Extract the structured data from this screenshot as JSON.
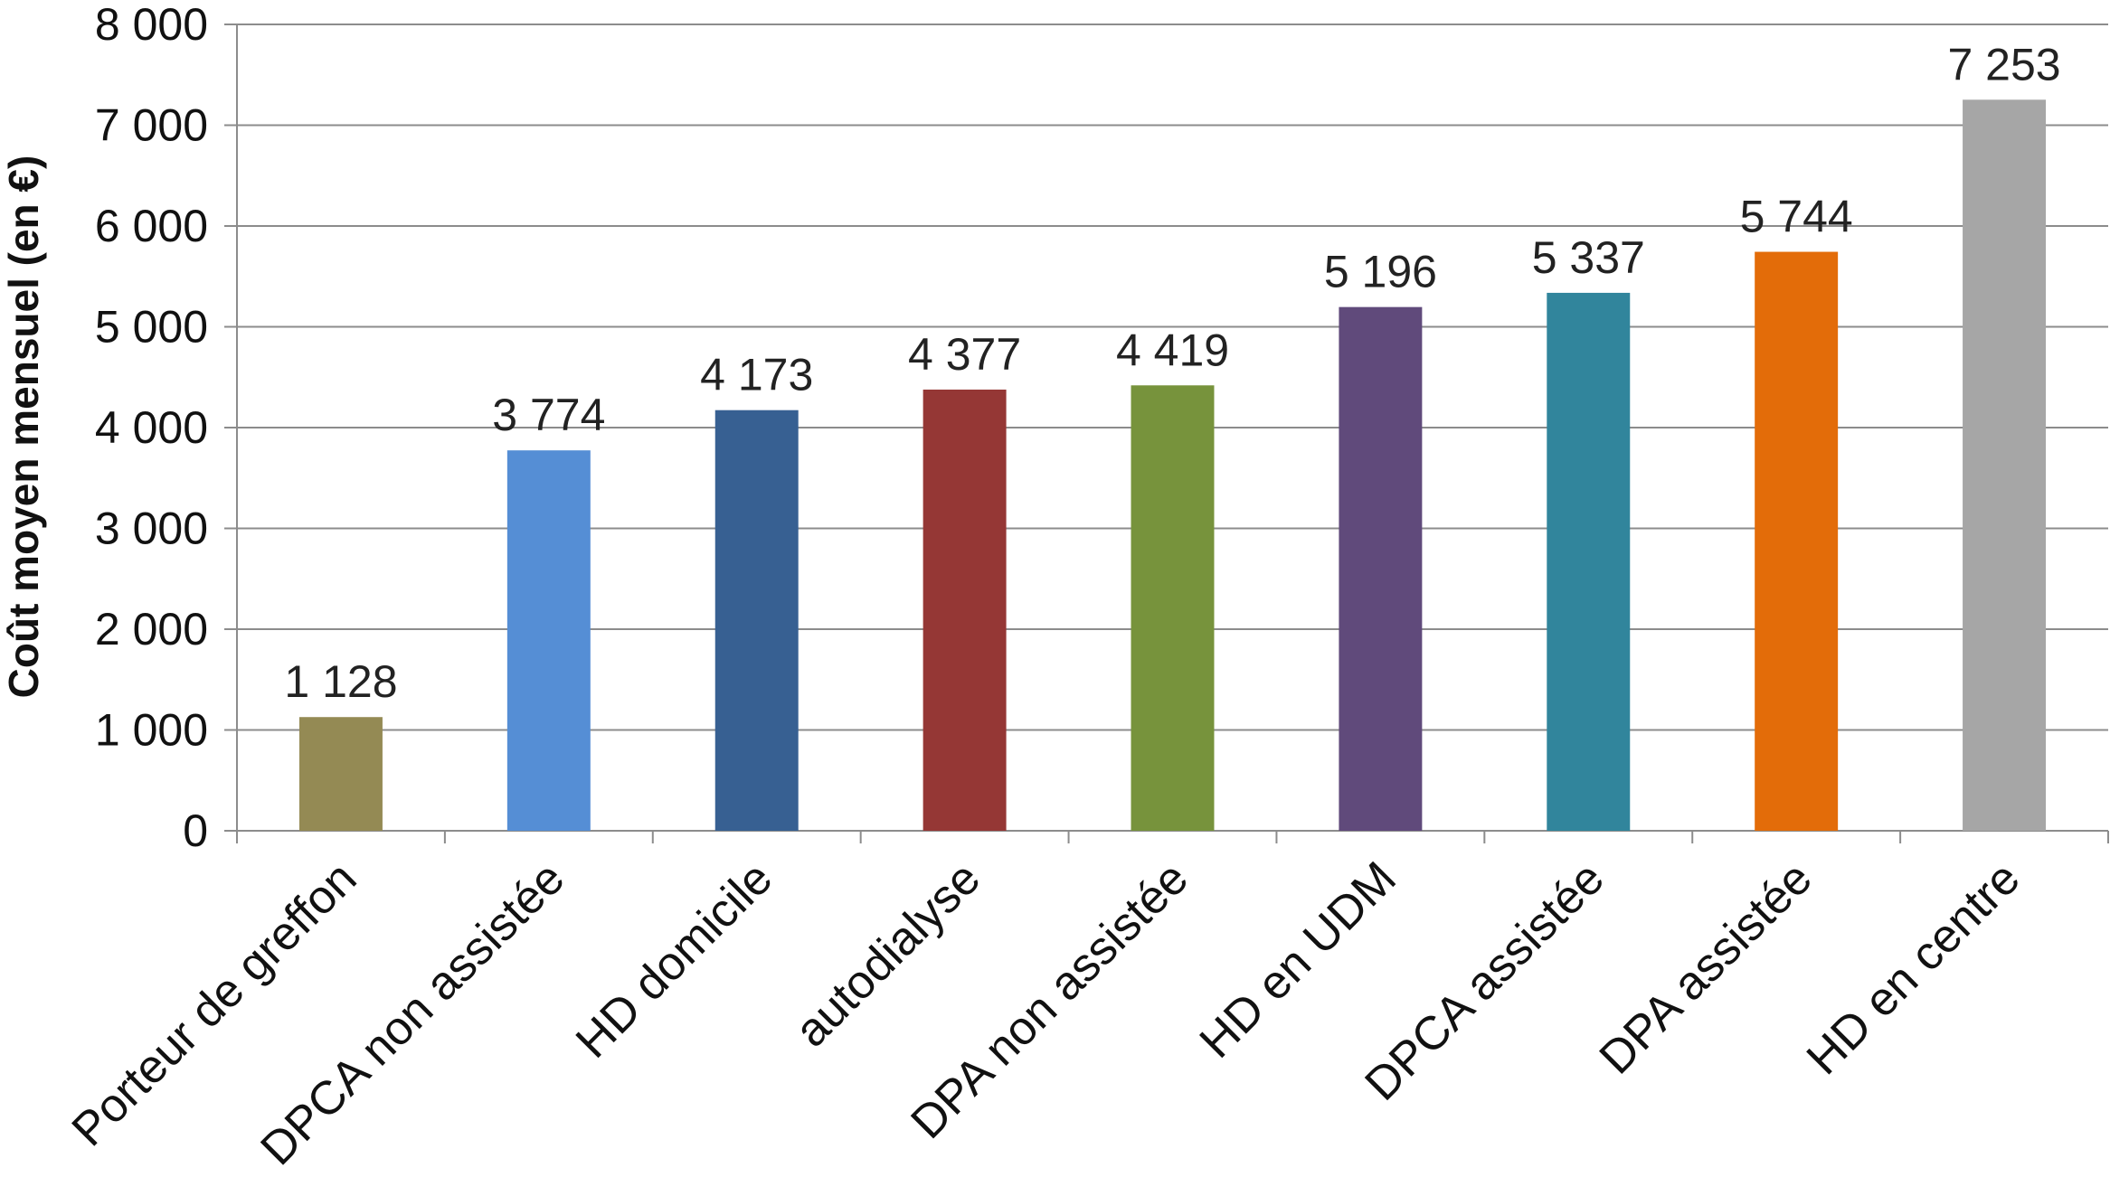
{
  "chart_data": {
    "type": "bar",
    "title": "",
    "xlabel": "",
    "ylabel": "Coût moyen mensuel (en €)",
    "ylim": [
      0,
      8000
    ],
    "ytick_step": 1000,
    "ytick_labels": [
      "0",
      "1 000",
      "2 000",
      "3 000",
      "4 000",
      "5 000",
      "6 000",
      "7 000",
      "8 000"
    ],
    "grid": true,
    "legend": "none",
    "categories": [
      "Porteur de greffon",
      "DPCA non assistée",
      "HD domicile",
      "autodialyse",
      "DPA non assistée",
      "HD en UDM",
      "DPCA assistée",
      "DPA assistée",
      "HD en centre"
    ],
    "values": [
      1128,
      3774,
      4173,
      4377,
      4419,
      5196,
      5337,
      5744,
      7253
    ],
    "data_labels": [
      "1 128",
      "3 774",
      "4 173",
      "4 377",
      "4 419",
      "5 196",
      "5 337",
      "5 744",
      "7 253"
    ],
    "colors": [
      "#948a54",
      "#558ed5",
      "#376092",
      "#953735",
      "#77933c",
      "#604a7b",
      "#31859c",
      "#e36c09",
      "#a6a6a6"
    ]
  }
}
